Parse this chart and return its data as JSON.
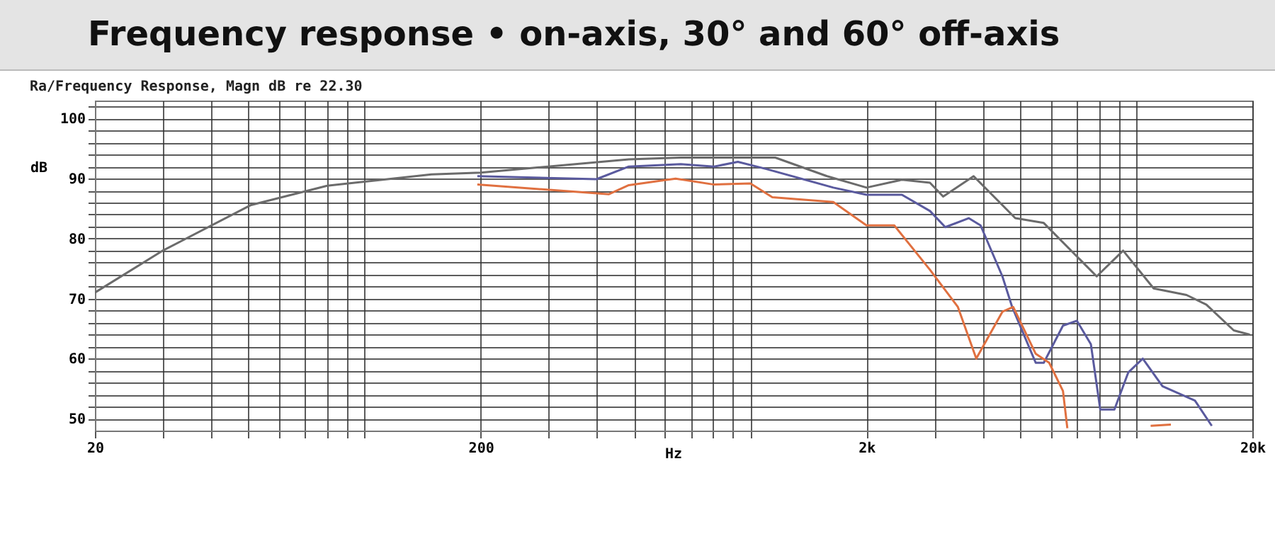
{
  "chart_data": {
    "type": "line",
    "title": "Frequency response • on-axis, 30° and 60° off-axis",
    "subtitle": "Ra/Frequency Response, Magn dB re 22.30",
    "xlabel": "Hz",
    "ylabel": "dB",
    "series": [
      {
        "color": "#6b6b6b",
        "x": [
          20,
          29.8,
          50.8,
          80,
          149,
          200,
          484,
          660,
          928,
          1160,
          1580,
          2000,
          2470,
          2920,
          3160,
          3790,
          4860,
          5760,
          7900,
          9250,
          11100,
          13500,
          15200,
          17900,
          19700
        ],
        "values": [
          71,
          77.9,
          85.6,
          88.8,
          90.7,
          91,
          93.2,
          93.5,
          93.5,
          93.5,
          90.4,
          88.5,
          89.8,
          89.3,
          87,
          90.4,
          83.4,
          82.6,
          73.7,
          78,
          71.7,
          70.6,
          69,
          64.7,
          64
        ]
      },
      {
        "color": "#5a5a9e",
        "x": [
          196,
          399,
          484,
          660,
          805,
          928,
          1100,
          1640,
          2000,
          2470,
          2920,
          3200,
          3680,
          3950,
          4500,
          4770,
          5490,
          5760,
          6460,
          7020,
          7630,
          8070,
          8780,
          9540,
          10400,
          11700,
          14200,
          15700
        ],
        "values": [
          90.4,
          89.9,
          92,
          92.4,
          92,
          92.8,
          91.6,
          88.5,
          87.3,
          87.3,
          84.6,
          81.9,
          83.4,
          82.2,
          73.7,
          68.6,
          59.3,
          59.3,
          65.5,
          66.3,
          62.4,
          51.5,
          51.5,
          57.7,
          60,
          55.4,
          53,
          48.8
        ]
      },
      {
        "color": "#e07040",
        "x": [
          196,
          430,
          484,
          640,
          805,
          1000,
          1140,
          1640,
          2000,
          2360,
          2920,
          3450,
          3850,
          4500,
          4800,
          5490,
          5950,
          6460,
          6630,
          8000,
          10900,
          12300
        ],
        "values": [
          89,
          87.4,
          88.9,
          90,
          89,
          89.2,
          86.9,
          86.1,
          82.2,
          82.2,
          74.8,
          68.6,
          60,
          67.8,
          68.6,
          60.8,
          59.3,
          54.6,
          48.4,
          null,
          48.8,
          49
        ]
      }
    ],
    "xlim": [
      20,
      20000
    ],
    "ylim": [
      48,
      103
    ],
    "log": "x",
    "grid": true,
    "xticks": [
      20,
      {
        "value": 30,
        "label": null
      },
      {
        "value": 40,
        "label": null
      },
      {
        "value": 50,
        "label": null
      },
      {
        "value": 60,
        "label": null
      },
      {
        "value": 70,
        "label": null
      },
      {
        "value": 80,
        "label": null
      },
      {
        "value": 90,
        "label": null
      },
      {
        "value": 100,
        "label": null
      },
      200,
      {
        "value": 300,
        "label": null
      },
      {
        "value": 400,
        "label": null
      },
      {
        "value": 500,
        "label": null
      },
      {
        "value": 600,
        "label": null
      },
      {
        "value": 700,
        "label": null
      },
      {
        "value": 800,
        "label": null
      },
      {
        "value": 900,
        "label": null
      },
      {
        "value": 1000,
        "label": null
      },
      {
        "value": 2000,
        "label": "2k"
      },
      {
        "value": 3000,
        "label": null
      },
      {
        "value": 4000,
        "label": null
      },
      {
        "value": 5000,
        "label": null
      },
      {
        "value": 6000,
        "label": null
      },
      {
        "value": 7000,
        "label": null
      },
      {
        "value": 8000,
        "label": null
      },
      {
        "value": 9000,
        "label": null
      },
      {
        "value": 10000,
        "label": null
      },
      {
        "value": 20000,
        "label": "20k"
      }
    ],
    "yticks": [
      50,
      {
        "value": 52,
        "label": null
      },
      {
        "value": 54,
        "label": null
      },
      {
        "value": 56,
        "label": null
      },
      {
        "value": 58,
        "label": null
      },
      60,
      {
        "value": 62,
        "label": null
      },
      {
        "value": 64,
        "label": null
      },
      {
        "value": 66,
        "label": null
      },
      {
        "value": 68,
        "label": null
      },
      70,
      {
        "value": 72,
        "label": null
      },
      {
        "value": 74,
        "label": null
      },
      {
        "value": 76,
        "label": null
      },
      {
        "value": 78,
        "label": null
      },
      80,
      {
        "value": 82,
        "label": null
      },
      {
        "value": 84,
        "label": null
      },
      {
        "value": 86,
        "label": null
      },
      {
        "value": 88,
        "label": null
      },
      90,
      {
        "value": 92,
        "label": null
      },
      {
        "value": 94,
        "label": null
      },
      {
        "value": 96,
        "label": null
      },
      {
        "value": 98,
        "label": null
      },
      100,
      {
        "value": 102,
        "label": null
      }
    ],
    "marker": "none",
    "line_style": "solid"
  }
}
